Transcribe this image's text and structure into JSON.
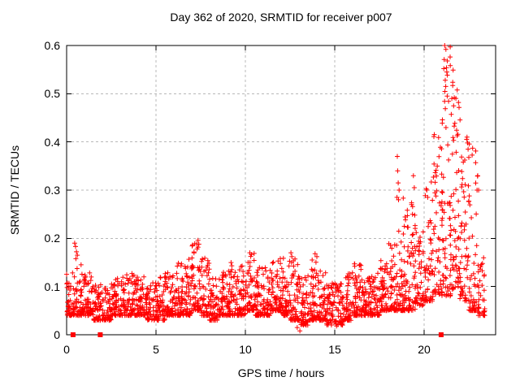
{
  "chart_data": {
    "type": "scatter",
    "title": "Day 362 of 2020, SRMTID for receiver p007",
    "xlabel": "GPS time / hours",
    "ylabel": "SRMTID / TECUs",
    "xlim": [
      0,
      24
    ],
    "ylim": [
      0,
      0.6
    ],
    "xticks": [
      0,
      5,
      10,
      15,
      20
    ],
    "xtick_labels": [
      "0",
      "5",
      "10",
      "15",
      "20"
    ],
    "yticks": [
      0,
      0.1,
      0.2,
      0.3,
      0.4,
      0.5,
      0.6
    ],
    "ytick_labels": [
      "0",
      "0.1",
      "0.2",
      "0.3",
      "0.4",
      "0.5",
      "0.6"
    ],
    "grid": "dashed",
    "grid_color": "#b8b8b8",
    "axis_color": "#000000",
    "marker": "plus",
    "marker_color": "#ff0000",
    "legend": "none",
    "series": [
      {
        "name": "srmtid-points",
        "kind": "scatter-envelope",
        "bins_format": [
          "hour_start",
          "hour_end",
          "value_low",
          "value_high",
          "count",
          "bottom_bias"
        ],
        "bins": [
          [
            0.0,
            0.5,
            0.04,
            0.13,
            55,
            2.2
          ],
          [
            0.5,
            1.0,
            0.04,
            0.16,
            55,
            2.6
          ],
          [
            1.0,
            1.5,
            0.04,
            0.13,
            55,
            2.2
          ],
          [
            1.5,
            2.0,
            0.03,
            0.11,
            50,
            2.0
          ],
          [
            2.0,
            2.5,
            0.03,
            0.1,
            50,
            2.0
          ],
          [
            2.5,
            3.0,
            0.04,
            0.12,
            55,
            2.2
          ],
          [
            3.0,
            3.5,
            0.04,
            0.13,
            55,
            2.2
          ],
          [
            3.5,
            4.0,
            0.04,
            0.13,
            55,
            2.2
          ],
          [
            4.0,
            4.5,
            0.04,
            0.12,
            55,
            2.2
          ],
          [
            4.5,
            5.0,
            0.03,
            0.11,
            50,
            2.0
          ],
          [
            5.0,
            5.5,
            0.03,
            0.12,
            55,
            2.1
          ],
          [
            5.5,
            6.0,
            0.04,
            0.13,
            55,
            2.2
          ],
          [
            6.0,
            6.5,
            0.04,
            0.15,
            55,
            2.3
          ],
          [
            6.5,
            7.0,
            0.04,
            0.16,
            55,
            2.3
          ],
          [
            7.0,
            7.5,
            0.05,
            0.19,
            60,
            2.4
          ],
          [
            7.5,
            8.0,
            0.04,
            0.16,
            55,
            2.3
          ],
          [
            8.0,
            8.5,
            0.03,
            0.12,
            55,
            2.0
          ],
          [
            8.5,
            9.0,
            0.04,
            0.13,
            55,
            2.1
          ],
          [
            9.0,
            9.5,
            0.04,
            0.15,
            55,
            2.2
          ],
          [
            9.5,
            10.0,
            0.04,
            0.16,
            55,
            2.3
          ],
          [
            10.0,
            10.5,
            0.05,
            0.17,
            55,
            2.3
          ],
          [
            10.5,
            11.0,
            0.04,
            0.14,
            55,
            2.2
          ],
          [
            11.0,
            11.5,
            0.04,
            0.14,
            55,
            2.2
          ],
          [
            11.5,
            12.0,
            0.05,
            0.16,
            55,
            2.3
          ],
          [
            12.0,
            12.5,
            0.04,
            0.16,
            55,
            2.3
          ],
          [
            12.5,
            13.0,
            0.03,
            0.16,
            55,
            2.4
          ],
          [
            13.0,
            13.5,
            0.02,
            0.12,
            50,
            2.0
          ],
          [
            13.5,
            14.0,
            0.03,
            0.16,
            55,
            2.4
          ],
          [
            14.0,
            14.5,
            0.03,
            0.14,
            50,
            2.3
          ],
          [
            14.5,
            15.0,
            0.02,
            0.11,
            50,
            2.0
          ],
          [
            15.0,
            15.5,
            0.02,
            0.11,
            50,
            2.0
          ],
          [
            15.5,
            16.0,
            0.03,
            0.13,
            55,
            2.2
          ],
          [
            16.0,
            16.5,
            0.04,
            0.15,
            55,
            2.3
          ],
          [
            16.5,
            17.0,
            0.04,
            0.12,
            55,
            2.0
          ],
          [
            17.0,
            17.5,
            0.04,
            0.13,
            55,
            2.1
          ],
          [
            17.5,
            18.0,
            0.05,
            0.16,
            55,
            2.2
          ],
          [
            18.0,
            18.5,
            0.05,
            0.19,
            55,
            2.3
          ],
          [
            18.5,
            19.0,
            0.05,
            0.3,
            60,
            2.8
          ],
          [
            19.0,
            19.5,
            0.05,
            0.28,
            55,
            2.5
          ],
          [
            19.5,
            20.0,
            0.06,
            0.22,
            50,
            2.2
          ],
          [
            20.0,
            20.5,
            0.07,
            0.32,
            55,
            2.3
          ],
          [
            20.5,
            21.0,
            0.08,
            0.42,
            55,
            2.1
          ],
          [
            21.0,
            21.5,
            0.08,
            0.6,
            65,
            1.9
          ],
          [
            21.5,
            22.0,
            0.09,
            0.55,
            60,
            1.9
          ],
          [
            22.0,
            22.5,
            0.07,
            0.45,
            55,
            2.1
          ],
          [
            22.5,
            23.0,
            0.05,
            0.4,
            50,
            2.3
          ],
          [
            23.0,
            23.4,
            0.04,
            0.16,
            40,
            2.0
          ]
        ],
        "outliers": [
          [
            0.45,
            0.19
          ],
          [
            0.5,
            0.183
          ],
          [
            0.55,
            0.172
          ],
          [
            0.6,
            0.165
          ],
          [
            7.35,
            0.196
          ],
          [
            7.4,
            0.188
          ],
          [
            7.3,
            0.178
          ],
          [
            10.25,
            0.17
          ],
          [
            12.55,
            0.17
          ],
          [
            12.6,
            0.162
          ],
          [
            13.9,
            0.168
          ],
          [
            14.0,
            0.162
          ],
          [
            12.9,
            0.015
          ],
          [
            13.05,
            0.008
          ],
          [
            13.25,
            0.02
          ],
          [
            15.1,
            0.018
          ],
          [
            18.5,
            0.37
          ],
          [
            18.52,
            0.34
          ],
          [
            18.55,
            0.315
          ],
          [
            18.6,
            0.3
          ],
          [
            18.48,
            0.285
          ],
          [
            19.4,
            0.33
          ],
          [
            19.45,
            0.305
          ],
          [
            19.3,
            0.27
          ],
          [
            19.35,
            0.25
          ],
          [
            20.15,
            0.3
          ],
          [
            20.2,
            0.285
          ],
          [
            21.15,
            0.6
          ],
          [
            21.22,
            0.592
          ],
          [
            21.3,
            0.568
          ],
          [
            21.1,
            0.552
          ],
          [
            21.27,
            0.545
          ],
          [
            21.18,
            0.528
          ],
          [
            21.6,
            0.517
          ],
          [
            21.55,
            0.49
          ],
          [
            21.65,
            0.475
          ],
          [
            22.4,
            0.41
          ],
          [
            22.43,
            0.398
          ],
          [
            22.46,
            0.385
          ],
          [
            22.5,
            0.368
          ],
          [
            23.0,
            0.33
          ],
          [
            23.05,
            0.3
          ]
        ]
      },
      {
        "name": "axis-flag-squares",
        "kind": "squares",
        "color": "#ff0000",
        "points": [
          [
            0.36,
            0
          ],
          [
            1.88,
            0
          ],
          [
            20.95,
            0
          ]
        ]
      }
    ]
  }
}
